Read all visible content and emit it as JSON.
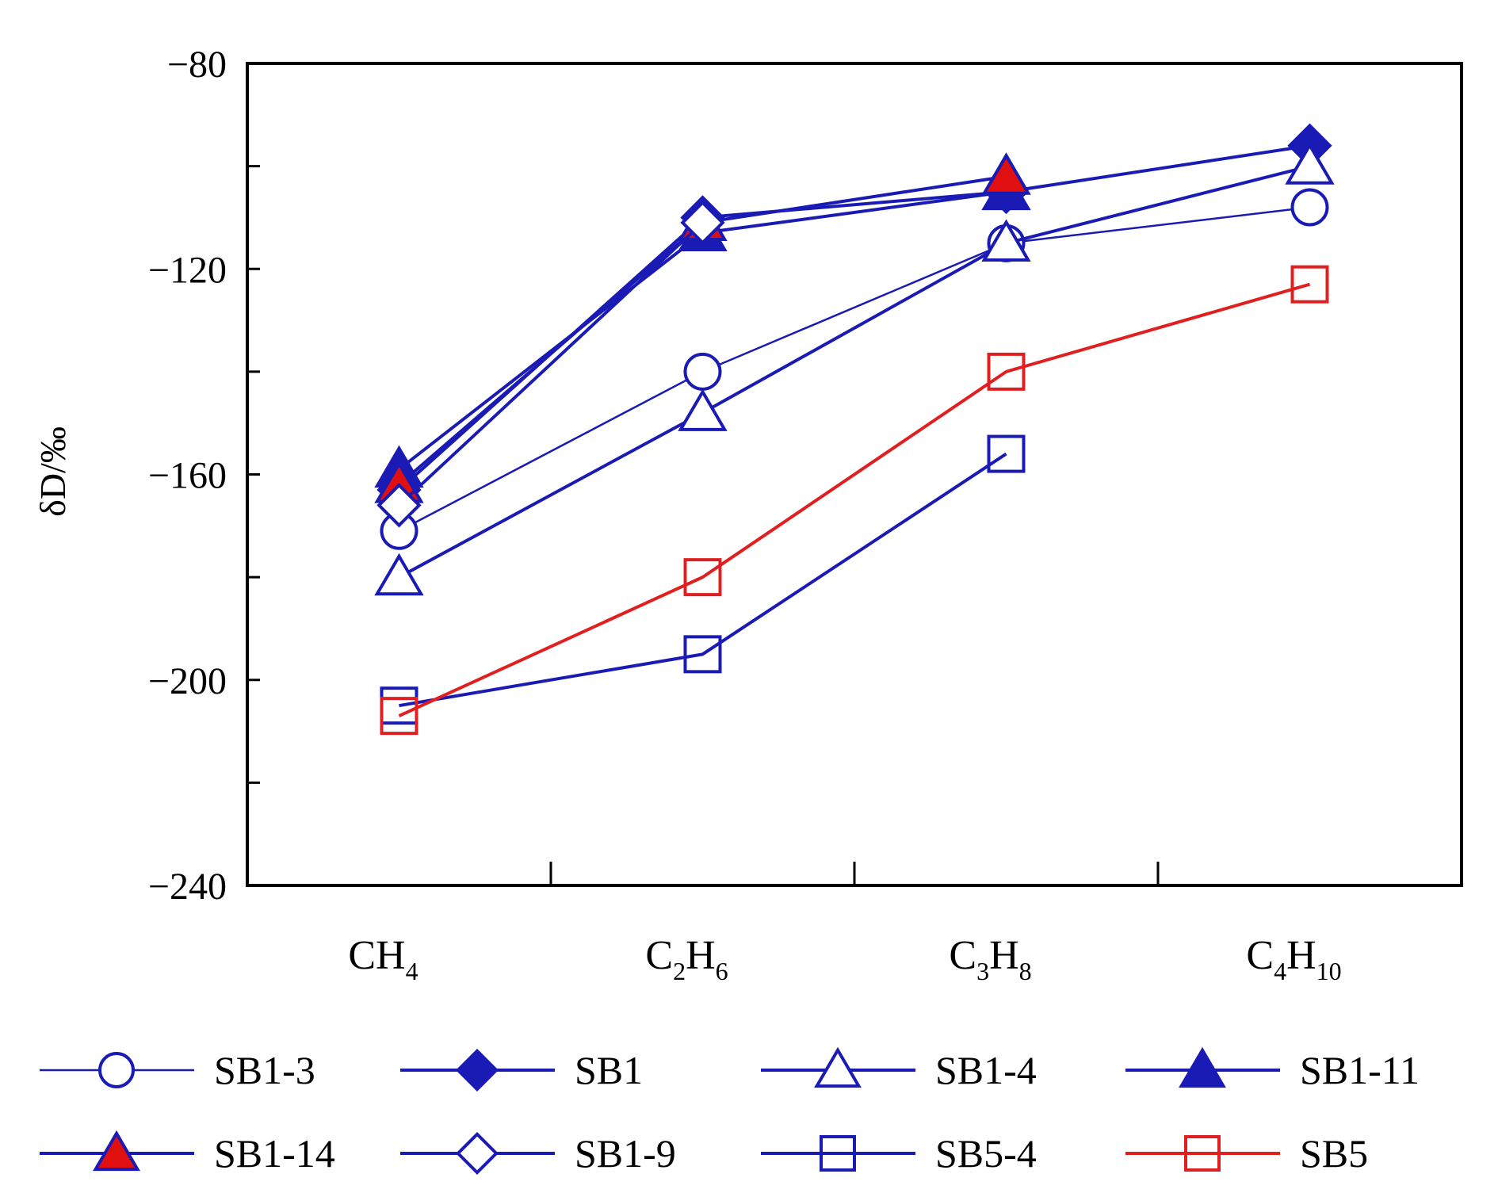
{
  "chart_data": {
    "type": "line",
    "title": "",
    "xlabel": "",
    "ylabel": "δD/‰",
    "ylim": [
      -240,
      -80
    ],
    "yticks": [
      -80,
      -100,
      -120,
      -140,
      -160,
      -180,
      -200,
      -220,
      -240
    ],
    "ytick_labels": [
      "−80",
      "",
      "−120",
      "",
      "−160",
      "",
      "−200",
      "",
      "−240"
    ],
    "categories": [
      {
        "base": "CH",
        "sub": "4"
      },
      {
        "base": "C",
        "sub1": "2",
        "mid": "H",
        "sub2": "6"
      },
      {
        "base": "C",
        "sub1": "3",
        "mid": "H",
        "sub2": "8"
      },
      {
        "base": "C",
        "sub1": "4",
        "mid": "H",
        "sub2": "10"
      }
    ],
    "grid": false,
    "legend_position": "bottom",
    "series": [
      {
        "name": "SB1-3",
        "color": "#1a1ab4",
        "marker": "circle-open",
        "line_width": 2.5,
        "values": [
          -171,
          -140,
          -115,
          -108
        ]
      },
      {
        "name": "SB1",
        "color": "#1a1ab4",
        "marker": "diamond-filled",
        "line_width": 4,
        "values": [
          -163,
          -110,
          -105,
          -96
        ]
      },
      {
        "name": "SB1-4",
        "color": "#1a1ab4",
        "marker": "triangle-open",
        "line_width": 4,
        "values": [
          -180,
          -148,
          -115,
          -100
        ]
      },
      {
        "name": "SB1-11",
        "color": "#1a1ab4",
        "marker": "triangle-filled",
        "line_width": 4,
        "values": [
          -159,
          -113,
          -105,
          null
        ]
      },
      {
        "name": "SB1-14",
        "color": "#1a1ab4",
        "marker": "triangle-red",
        "line_width": 4,
        "values": [
          -162,
          -111,
          -102,
          null
        ]
      },
      {
        "name": "SB1-9",
        "color": "#1a1ab4",
        "marker": "diamond-open",
        "line_width": 4,
        "values": [
          -166,
          -111,
          null,
          null
        ]
      },
      {
        "name": "SB5-4",
        "color": "#1a1ab4",
        "marker": "square-open",
        "line_width": 4,
        "values": [
          -205,
          -195,
          -156,
          null
        ]
      },
      {
        "name": "SB5",
        "color": "#e02020",
        "marker": "square-open",
        "line_width": 4,
        "values": [
          -207,
          -180,
          -140,
          -123
        ]
      }
    ]
  }
}
